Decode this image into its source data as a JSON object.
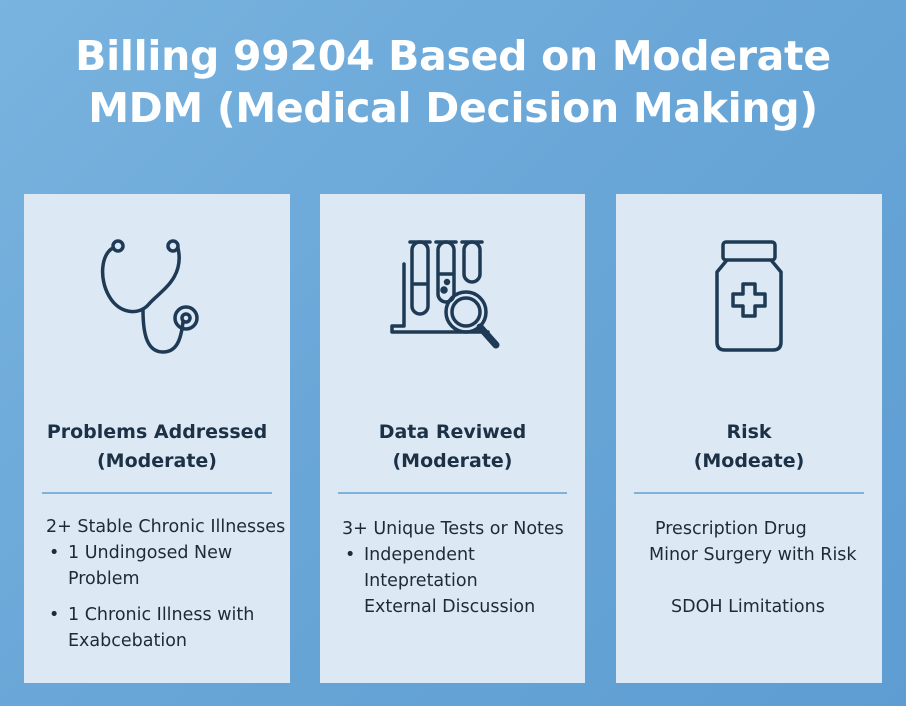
{
  "title": {
    "line1": "Billing 99204 Based on Moderate",
    "line2": "MDM (Medical Decision Making)"
  },
  "colors": {
    "background": "#6aa7d8",
    "card": "#dce9f5",
    "icon_stroke": "#1e3a55",
    "rule": "#7fb2da"
  },
  "cards": [
    {
      "icon": "stethoscope-icon",
      "heading1": "Problems Addressed",
      "heading2": "(Moderate)",
      "intro": "2+ Stable Chronic Illnesses",
      "bullets": [
        {
          "l1": "1 Undingosed New",
          "l2": "Problem"
        },
        {
          "l1": "1 Chronic Illness with",
          "l2": "Exabcebation"
        }
      ]
    },
    {
      "icon": "test-tubes-magnifier-icon",
      "heading1": "Data Reviwed",
      "heading2": "(Moderate)",
      "intro": "3+ Unique Tests or Notes",
      "bullets": [
        {
          "l1": "Independent",
          "l2": "Intepretation",
          "l3": "External Discussion"
        }
      ]
    },
    {
      "icon": "medicine-bottle-icon",
      "heading1": "Risk",
      "heading2": "(Modeate)",
      "lines": [
        "Prescription Drug",
        "Minor Surgery with Risk",
        "SDOH Limitations"
      ]
    }
  ]
}
